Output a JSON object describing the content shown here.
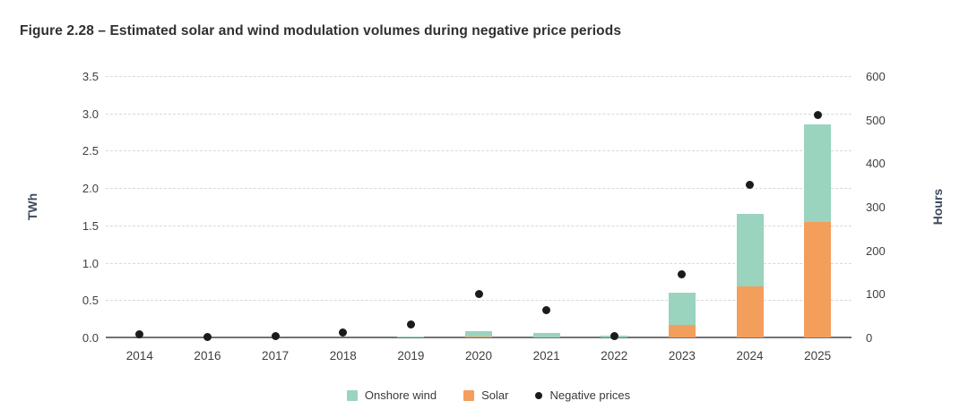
{
  "figure": {
    "title": "Figure 2.28 – Estimated solar and wind modulation volumes during negative price periods"
  },
  "chart_data": {
    "type": "bar",
    "subtype": "stacked-bars-with-scatter-overlay",
    "title": "Figure 2.28 – Estimated solar and wind modulation volumes during negative price periods",
    "categories": [
      "2014",
      "2016",
      "2017",
      "2018",
      "2019",
      "2020",
      "2021",
      "2022",
      "2023",
      "2024",
      "2025"
    ],
    "series": [
      {
        "name": "Solar",
        "type": "bar",
        "stack_order": "bottom",
        "axis": "left",
        "color": "#f49e5c",
        "values": [
          0,
          0,
          0,
          0,
          0,
          0.01,
          0,
          0,
          0.17,
          0.68,
          1.55
        ]
      },
      {
        "name": "Onshore wind",
        "type": "bar",
        "stack_order": "top",
        "axis": "left",
        "color": "#9ad3be",
        "values": [
          0,
          0,
          0,
          0,
          0.01,
          0.07,
          0.06,
          0.02,
          0.43,
          0.97,
          1.3
        ]
      },
      {
        "name": "Negative prices",
        "type": "scatter",
        "axis": "right",
        "color": "#1b1b1b",
        "values": [
          8,
          2,
          4,
          12,
          30,
          100,
          62,
          4,
          145,
          350,
          510
        ]
      }
    ],
    "left_axis": {
      "label": "TWh",
      "min": 0,
      "max": 3.5,
      "step": 0.5,
      "ticks": [
        "3.5",
        "3.0",
        "2.5",
        "2.0",
        "1.5",
        "1.0",
        "0.5",
        "0.0"
      ]
    },
    "right_axis": {
      "label": "Hours",
      "min": 0,
      "max": 600,
      "step": 100,
      "ticks": [
        "600",
        "500",
        "400",
        "300",
        "200",
        "100",
        "0"
      ]
    },
    "grid": {
      "horizontal": true,
      "style": "dashed",
      "color": "#d9d9d9"
    },
    "legend": {
      "position": "bottom-center",
      "items": [
        {
          "label": "Onshore wind",
          "marker": "square",
          "color": "#9ad3be"
        },
        {
          "label": "Solar",
          "marker": "square",
          "color": "#f49e5c"
        },
        {
          "label": "Negative prices",
          "marker": "dot",
          "color": "#1b1b1b"
        }
      ]
    }
  }
}
